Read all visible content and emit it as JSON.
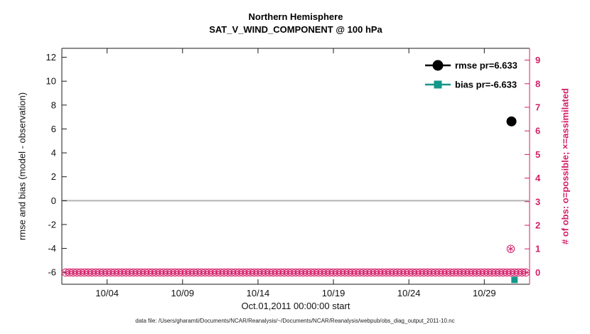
{
  "chart_data": {
    "type": "scatter",
    "title": "Northern Hemisphere",
    "subtitle": "SAT_V_WIND_COMPONENT @ 100 hPa",
    "xlabel": "Oct.01,2011 00:00:00 start",
    "ylabel_left": "rmse and bias (model - observation)",
    "ylabel_right": "# of obs: o=possible; ×=assimilated",
    "caption": "data file: /Users/gharamti/Documents/NCAR/Reanalysis/~/Documents/NCAR/Reanalysis/webpub/obs_diag_output_2011-10.nc",
    "x_axis": {
      "tick_labels": [
        "10/04",
        "10/09",
        "10/14",
        "10/19",
        "10/24",
        "10/29"
      ],
      "tick_days": [
        3,
        8,
        13,
        18,
        23,
        28
      ],
      "xlim_days": [
        0,
        31
      ],
      "epoch": "Oct.01,2011 00:00:00"
    },
    "left_axis": {
      "ticks": [
        -6,
        -4,
        -2,
        0,
        2,
        4,
        6,
        8,
        10,
        12
      ],
      "lim": [
        -7,
        12.75
      ],
      "color": "#1a1a1a"
    },
    "right_axis": {
      "ticks": [
        0,
        1,
        2,
        3,
        4,
        5,
        6,
        7,
        8,
        9
      ],
      "lim": [
        -0.5,
        9.5
      ],
      "color": "#d31e68"
    },
    "zero_line": {
      "value": 0,
      "color": "#b3b3b3"
    },
    "legend": [
      {
        "label": "rmse pr=6.633",
        "color": "#000000",
        "marker": "circle"
      },
      {
        "label": "bias pr=-6.633",
        "color": "#13988b",
        "marker": "square"
      }
    ],
    "series": [
      {
        "name": "rmse",
        "axis": "left",
        "marker": "circle",
        "color": "#000000",
        "points": [
          {
            "day": 29.8,
            "value": 6.633
          }
        ]
      },
      {
        "name": "bias",
        "axis": "left",
        "marker": "square",
        "color": "#13988b",
        "points": [
          {
            "day": 30.0,
            "value": -6.633
          }
        ]
      },
      {
        "name": "obs-count-possible-assimilated",
        "axis": "right",
        "marker": "circled-asterisk",
        "color": "#d31e68",
        "points": [
          {
            "day": 29.75,
            "value": 1
          }
        ],
        "row": {
          "start_day": 0.25,
          "end_day": 30.75,
          "step_day": 0.25,
          "value": 0
        }
      }
    ]
  }
}
